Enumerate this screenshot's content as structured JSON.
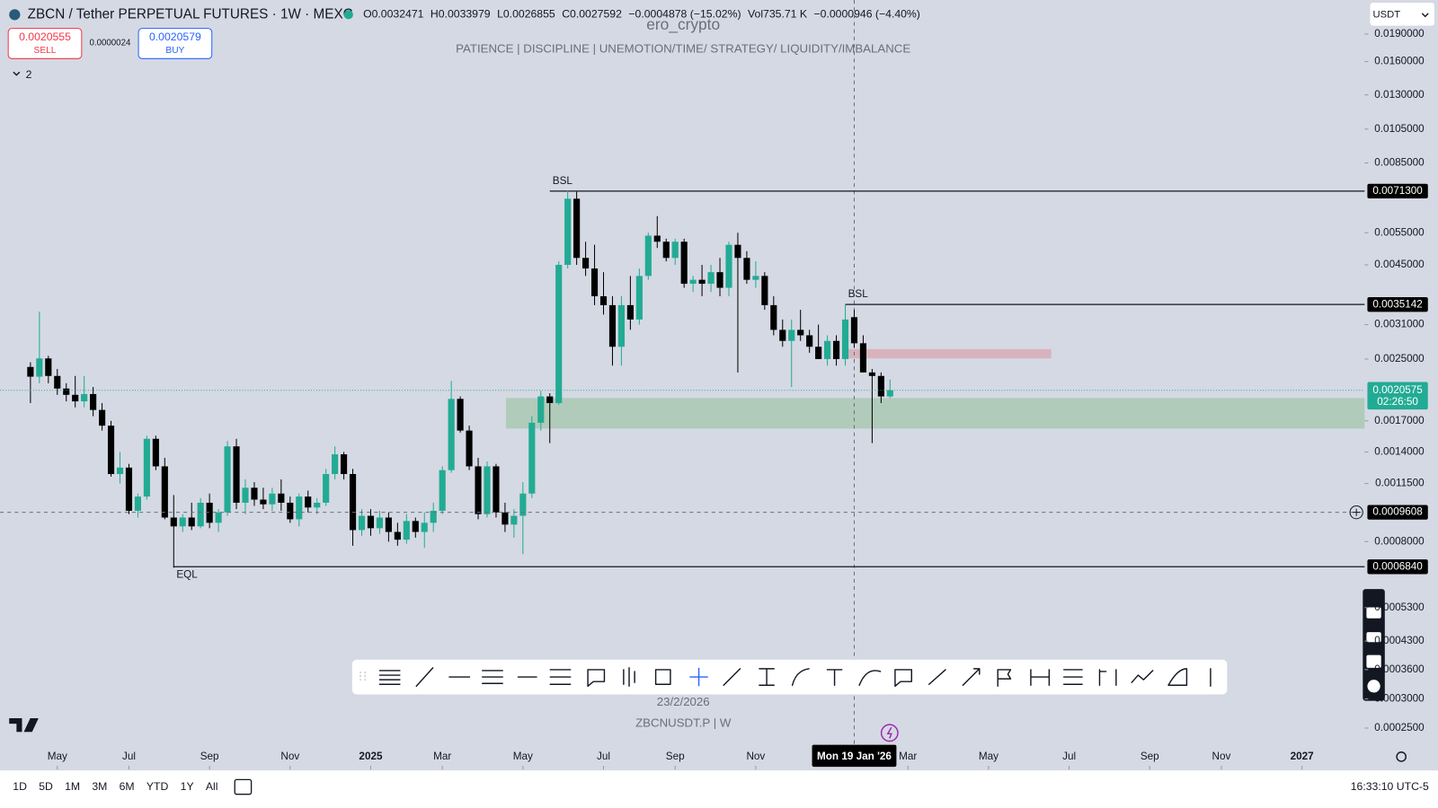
{
  "header": {
    "symbol": "ZBCN / Tether PERPETUAL FUTURES · 1W · MEXC",
    "ohlc": [
      "O0.0032471",
      "H0.0033979",
      "L0.0026855",
      "C0.0027592",
      "−0.0004878 (−15.02%)",
      "Vol735.71 K",
      "−0.0000946 (−4.40%)"
    ]
  },
  "trade": {
    "sell_price": "0.0020555",
    "sell": "SELL",
    "spread": "0.0000024",
    "buy_price": "0.0020579",
    "buy": "BUY",
    "indicators": "2",
    "currency": "USDT"
  },
  "watermark": {
    "author": "ero_crypto",
    "motto": "PATIENCE   |   DISCIPLINE   |   UNEMOTION/TIME/ STRATEGY/ LIQUIDITY/IMBALANCE",
    "date": "23/2/2026",
    "symbol": "ZBCNUSDT.P  |  W"
  },
  "chart_data": {
    "type": "candlestick",
    "log_scale": true,
    "up_color": "#22ab94",
    "down_color": "#000000",
    "open": [
      0.00238,
      0.00224,
      0.00251,
      0.00225,
      0.00208,
      0.002,
      0.00192,
      0.00201,
      0.00182,
      0.00165,
      0.00122,
      0.00127,
      0.00097,
      0.00106,
      0.00152,
      0.00128,
      0.00093,
      0.00088,
      0.00093,
      0.00088,
      0.00102,
      0.0009,
      0.00096,
      0.00145,
      0.00102,
      0.00112,
      0.00104,
      0.00101,
      0.00108,
      0.00102,
      0.00092,
      0.00106,
      0.00099,
      0.00102,
      0.00122,
      0.00138,
      0.00122,
      0.00086,
      0.00094,
      0.00087,
      0.00093,
      0.00085,
      0.00081,
      0.00091,
      0.00085,
      0.0009,
      0.00097,
      0.00125,
      0.00195,
      0.0016,
      0.00128,
      0.00095,
      0.00128,
      0.00096,
      0.00089,
      0.00094,
      0.00108,
      0.00168,
      0.00198,
      0.0019,
      0.0045,
      0.0068,
      0.0047,
      0.0044,
      0.0037,
      0.0035,
      0.0027,
      0.0035,
      0.0032,
      0.0042,
      0.0054,
      0.0052,
      0.0047,
      0.0052,
      0.004,
      0.0041,
      0.004,
      0.0043,
      0.0039,
      0.0051,
      0.0047,
      0.0041,
      0.0042,
      0.0035,
      0.003,
      0.0028,
      0.003,
      0.0029,
      0.0027,
      0.0025,
      0.0028,
      0.0025,
      0.0032471,
      0.0027592,
      0.0023,
      0.00225,
      0.00198
    ],
    "high": [
      0.00245,
      0.00336,
      0.00255,
      0.00235,
      0.00215,
      0.00225,
      0.00225,
      0.0021,
      0.0019,
      0.0017,
      0.0014,
      0.0013,
      0.00108,
      0.00155,
      0.00155,
      0.00135,
      0.00107,
      0.00095,
      0.00102,
      0.00105,
      0.00108,
      0.00098,
      0.0015,
      0.00152,
      0.00118,
      0.00116,
      0.00112,
      0.00112,
      0.00118,
      0.00106,
      0.00108,
      0.0011,
      0.00105,
      0.00126,
      0.00145,
      0.0014,
      0.00126,
      0.00098,
      0.00098,
      0.00097,
      0.00096,
      0.0009,
      0.00095,
      0.00093,
      0.00096,
      0.00102,
      0.00128,
      0.00218,
      0.00198,
      0.00165,
      0.00135,
      0.00132,
      0.0013,
      0.00102,
      0.00098,
      0.00116,
      0.00175,
      0.00205,
      0.00202,
      0.0046,
      0.00715,
      0.0071,
      0.0052,
      0.0051,
      0.0043,
      0.0037,
      0.0037,
      0.0042,
      0.0044,
      0.0055,
      0.0061,
      0.0053,
      0.0053,
      0.0053,
      0.0042,
      0.0045,
      0.0045,
      0.0047,
      0.0052,
      0.0055,
      0.0049,
      0.0046,
      0.0043,
      0.0037,
      0.0032,
      0.0032,
      0.0034,
      0.003,
      0.0031,
      0.0029,
      0.0029,
      0.00351,
      0.0033979,
      0.0029,
      0.00235,
      0.0023,
      0.0022
    ],
    "low": [
      0.0019,
      0.00215,
      0.00215,
      0.002,
      0.00192,
      0.00185,
      0.00185,
      0.00175,
      0.0016,
      0.0012,
      0.00115,
      0.00095,
      0.00093,
      0.00104,
      0.00125,
      0.00092,
      0.00068,
      0.00085,
      0.00086,
      0.00087,
      0.00087,
      0.00085,
      0.00094,
      0.00098,
      0.00095,
      0.001,
      0.00098,
      0.00097,
      0.00097,
      0.0009,
      0.00088,
      0.00096,
      0.00095,
      0.001,
      0.00118,
      0.00118,
      0.00078,
      0.00083,
      0.00083,
      0.00084,
      0.0008,
      0.00078,
      0.00079,
      0.00082,
      0.00077,
      0.00085,
      0.00095,
      0.00123,
      0.00158,
      0.00125,
      0.00092,
      0.00093,
      0.00093,
      0.00085,
      0.00082,
      0.00074,
      0.00105,
      0.0016,
      0.00148,
      0.00188,
      0.0044,
      0.0045,
      0.0042,
      0.0035,
      0.0033,
      0.0024,
      0.0024,
      0.003,
      0.0031,
      0.0041,
      0.005,
      0.0046,
      0.0045,
      0.0039,
      0.0038,
      0.0037,
      0.0038,
      0.0037,
      0.0037,
      0.0023,
      0.004,
      0.0039,
      0.0034,
      0.0029,
      0.0027,
      0.0021,
      0.0028,
      0.0026,
      0.0025,
      0.0024,
      0.0024,
      0.0024,
      0.0026855,
      0.0023,
      0.00148,
      0.0019,
      0.00196
    ],
    "close": [
      0.00224,
      0.00251,
      0.00225,
      0.00208,
      0.002,
      0.00192,
      0.00201,
      0.00182,
      0.00165,
      0.00122,
      0.00127,
      0.00097,
      0.00106,
      0.00152,
      0.00128,
      0.00093,
      0.00088,
      0.00093,
      0.00088,
      0.00102,
      0.0009,
      0.00096,
      0.00145,
      0.00102,
      0.00112,
      0.00104,
      0.00101,
      0.00108,
      0.00102,
      0.00092,
      0.00106,
      0.00099,
      0.00102,
      0.00122,
      0.00138,
      0.00122,
      0.00086,
      0.00094,
      0.00087,
      0.00093,
      0.00085,
      0.00081,
      0.00091,
      0.00085,
      0.0009,
      0.00097,
      0.00125,
      0.00195,
      0.0016,
      0.00128,
      0.00095,
      0.00128,
      0.00096,
      0.00089,
      0.00094,
      0.00108,
      0.00168,
      0.00198,
      0.0019,
      0.0045,
      0.0068,
      0.0047,
      0.0044,
      0.0037,
      0.0035,
      0.0027,
      0.0035,
      0.0032,
      0.0042,
      0.0054,
      0.0052,
      0.0047,
      0.0052,
      0.004,
      0.0041,
      0.004,
      0.0043,
      0.0039,
      0.0051,
      0.0047,
      0.0041,
      0.0042,
      0.0035,
      0.003,
      0.0028,
      0.003,
      0.0029,
      0.0027,
      0.0025,
      0.0028,
      0.0025,
      0.0032,
      0.0027592,
      0.0023,
      0.00225,
      0.00198,
      0.0020575
    ],
    "xlim": [
      -3.4,
      149
    ],
    "xticks": [
      {
        "value": 3,
        "label": "May"
      },
      {
        "value": 11,
        "label": "Jul"
      },
      {
        "value": 20,
        "label": "Sep"
      },
      {
        "value": 29,
        "label": "Nov"
      },
      {
        "value": 38,
        "label": "2025"
      },
      {
        "value": 46,
        "label": "Mar"
      },
      {
        "value": 55,
        "label": "May"
      },
      {
        "value": 64,
        "label": "Jul"
      },
      {
        "value": 72,
        "label": "Sep"
      },
      {
        "value": 81,
        "label": "Nov"
      },
      {
        "value": 98,
        "label": "Mar"
      },
      {
        "value": 107,
        "label": "May"
      },
      {
        "value": 116,
        "label": "Jul"
      },
      {
        "value": 125,
        "label": "Sep"
      },
      {
        "value": 133,
        "label": "Nov"
      },
      {
        "value": 142,
        "label": "2027"
      }
    ],
    "ylim": [
      0.000193,
      0.0235
    ],
    "yticks": [
      {
        "value": 0.019,
        "label": "0.0190000"
      },
      {
        "value": 0.016,
        "label": "0.0160000"
      },
      {
        "value": 0.013,
        "label": "0.0130000"
      },
      {
        "value": 0.0105,
        "label": "0.0105000"
      },
      {
        "value": 0.0085,
        "label": "0.0085000"
      },
      {
        "value": 0.0055,
        "label": "0.0055000"
      },
      {
        "value": 0.0045,
        "label": "0.0045000"
      },
      {
        "value": 0.0031,
        "label": "0.0031000"
      },
      {
        "value": 0.0025,
        "label": "0.0025000"
      },
      {
        "value": 0.0017,
        "label": "0.0017000"
      },
      {
        "value": 0.0014,
        "label": "0.0014000"
      },
      {
        "value": 0.00115,
        "label": "0.0011500"
      },
      {
        "value": 0.0008,
        "label": "0.0008000"
      },
      {
        "value": 0.00053,
        "label": "0.0005300"
      },
      {
        "value": 0.00043,
        "label": "0.0004300"
      },
      {
        "value": 0.00036,
        "label": "0.0003600"
      },
      {
        "value": 0.0003,
        "label": "0.0003000"
      },
      {
        "value": 0.00025,
        "label": "0.0002500"
      }
    ],
    "levels": [
      {
        "value": 0.00713,
        "label": "0.0071300",
        "tag": "BSL",
        "from": 58
      },
      {
        "value": 0.0035142,
        "label": "0.0035142",
        "tag": "BSL",
        "from": 91
      },
      {
        "value": 0.000684,
        "label": "0.0006840",
        "tag": "EQL",
        "from": 16
      }
    ],
    "zones": [
      {
        "x": [
          53.1,
          149
        ],
        "y": [
          0.00162,
          0.00196
        ],
        "color": "#a9c8b3"
      },
      {
        "x": [
          91.1,
          114
        ],
        "y": [
          0.00251,
          0.00266
        ],
        "color": "#d8abb6"
      }
    ],
    "last_price": {
      "value": 0.0020575,
      "label": "0.0020575",
      "countdown": "02:26:50",
      "color": "#22ab94"
    },
    "crosshair": {
      "x": 92,
      "label": "Mon 19 Jan '26",
      "value": 0.0009608,
      "value_label": "0.0009608"
    }
  },
  "footer": {
    "ranges": [
      "1D",
      "5D",
      "1M",
      "3M",
      "6M",
      "YTD",
      "1Y",
      "All"
    ],
    "clock": "16:33:10 UTC-5"
  }
}
